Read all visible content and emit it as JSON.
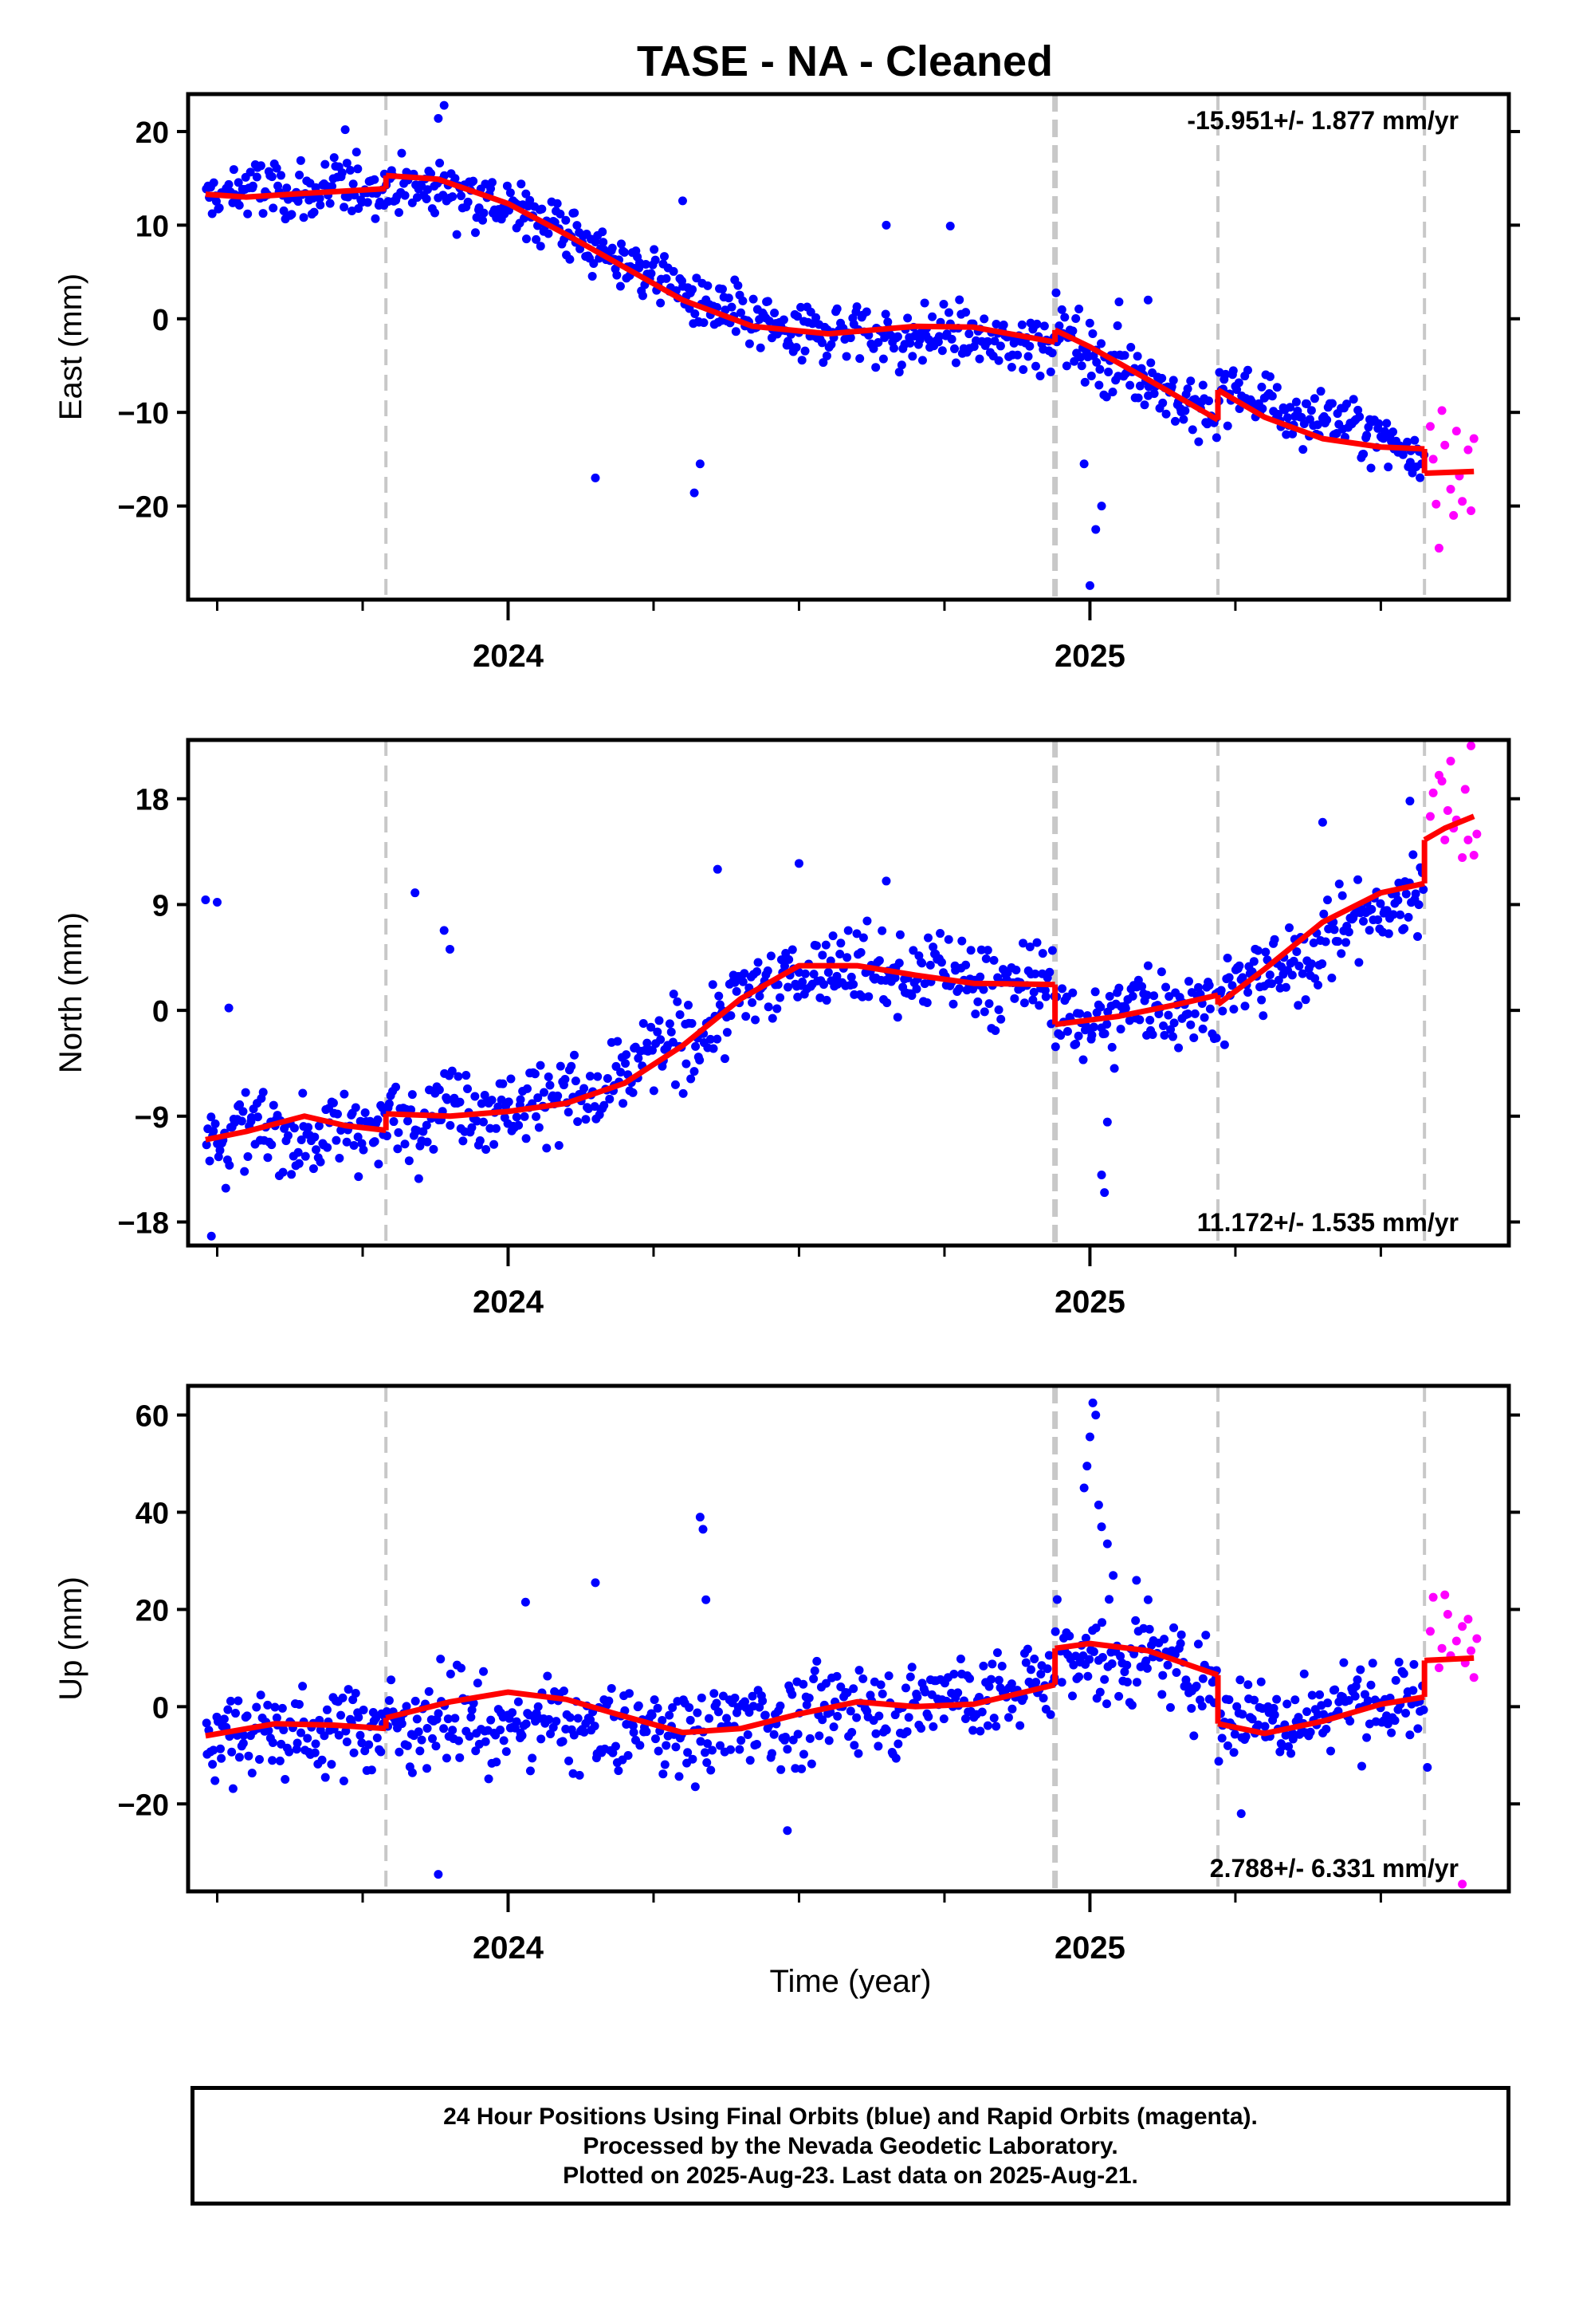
{
  "colors": {
    "final_orbits": "#0000ff",
    "rapid_orbits": "#ff00ff",
    "model": "#ff0000",
    "event_lines": "#c8c8c8",
    "frame": "#000000"
  },
  "chart_data": {
    "title": "TASE  - NA - Cleaned",
    "type": "scatter",
    "xlabel": "Time (year)",
    "xlim": [
      2023.45,
      2025.72
    ],
    "x_ticks": [
      2024,
      2025
    ],
    "x_minor_ticks": [
      2023.5,
      2023.75,
      2024.25,
      2024.5,
      2024.75,
      2025.25,
      2025.5
    ],
    "event_lines": [
      {
        "x": 2023.79,
        "style": "dashed"
      },
      {
        "x": 2024.94,
        "style": "dashed-heavy"
      },
      {
        "x": 2025.22,
        "style": "dashed"
      },
      {
        "x": 2025.575,
        "style": "dashed"
      }
    ],
    "panels": [
      {
        "ylabel": "East (mm)",
        "ylim": [
          -30,
          24
        ],
        "yticks": [
          20,
          10,
          0,
          -10,
          -20
        ],
        "ytick_labels": [
          "20",
          "10",
          "0",
          "−10",
          "−20"
        ],
        "rate_label": "-15.951+/- 1.877 mm/yr",
        "rate_position": "top-right",
        "model_segments": [
          [
            [
              2023.48,
              13.3
            ],
            [
              2023.55,
              13.0
            ],
            [
              2023.65,
              13.4
            ],
            [
              2023.79,
              13.9
            ]
          ],
          [
            [
              2023.79,
              15.3
            ],
            [
              2023.88,
              14.9
            ],
            [
              2024.0,
              12.3
            ],
            [
              2024.1,
              9.0
            ],
            [
              2024.2,
              5.5
            ],
            [
              2024.3,
              2.0
            ],
            [
              2024.42,
              -0.8
            ],
            [
              2024.55,
              -1.6
            ],
            [
              2024.7,
              -0.8
            ],
            [
              2024.8,
              -0.9
            ],
            [
              2024.94,
              -2.5
            ]
          ],
          [
            [
              2024.94,
              -1.2
            ],
            [
              2025.0,
              -3.0
            ],
            [
              2025.1,
              -6.5
            ],
            [
              2025.22,
              -10.8
            ]
          ],
          [
            [
              2025.22,
              -7.6
            ],
            [
              2025.3,
              -10.5
            ],
            [
              2025.4,
              -12.8
            ],
            [
              2025.5,
              -13.7
            ],
            [
              2025.575,
              -13.9
            ]
          ],
          [
            [
              2025.575,
              -16.5
            ],
            [
              2025.66,
              -16.3
            ]
          ]
        ],
        "final_series": [
          {
            "from": 2023.48,
            "to": 2023.79,
            "start": 13.3,
            "end": 13.9
          },
          {
            "from": 2023.79,
            "to": 2024.0,
            "start": 15.0,
            "end": 12.3
          },
          {
            "from": 2024.0,
            "to": 2024.42,
            "start": 12.3,
            "end": -0.8
          },
          {
            "from": 2024.42,
            "to": 2024.94,
            "start": -1.0,
            "end": -2.5
          },
          {
            "from": 2024.94,
            "to": 2025.22,
            "start": -1.2,
            "end": -10.8
          },
          {
            "from": 2025.22,
            "to": 2025.575,
            "start": -7.6,
            "end": -13.9
          }
        ],
        "final_outliers": [
          [
            2023.72,
            20.2
          ],
          [
            2023.88,
            21.4
          ],
          [
            2023.89,
            22.8
          ],
          [
            2024.15,
            -17.0
          ],
          [
            2024.32,
            -18.6
          ],
          [
            2024.33,
            -15.5
          ],
          [
            2024.3,
            12.6
          ],
          [
            2024.65,
            10.0
          ],
          [
            2024.76,
            9.9
          ],
          [
            2024.99,
            -15.5
          ],
          [
            2025.0,
            -28.5
          ],
          [
            2025.01,
            -22.5
          ],
          [
            2025.02,
            -20.0
          ],
          [
            2025.05,
            1.8
          ],
          [
            2025.1,
            2.0
          ]
        ],
        "rapid_points": [
          [
            2025.585,
            -11.5
          ],
          [
            2025.59,
            -15.0
          ],
          [
            2025.595,
            -19.8
          ],
          [
            2025.6,
            -24.5
          ],
          [
            2025.605,
            -9.8
          ],
          [
            2025.61,
            -13.5
          ],
          [
            2025.62,
            -18.2
          ],
          [
            2025.625,
            -21.0
          ],
          [
            2025.63,
            -12.0
          ],
          [
            2025.635,
            -16.8
          ],
          [
            2025.64,
            -19.5
          ],
          [
            2025.65,
            -14.0
          ],
          [
            2025.655,
            -20.5
          ],
          [
            2025.66,
            -12.8
          ]
        ]
      },
      {
        "ylabel": "North (mm)",
        "ylim": [
          -20,
          23
        ],
        "yticks": [
          18,
          9,
          0,
          -9,
          -18
        ],
        "ytick_labels": [
          "18",
          "9",
          "0",
          "−9",
          "−18"
        ],
        "rate_label": "11.172+/- 1.535 mm/yr",
        "rate_position": "bottom-right",
        "model_segments": [
          [
            [
              2023.48,
              -11.0
            ],
            [
              2023.55,
              -10.3
            ],
            [
              2023.65,
              -9.0
            ],
            [
              2023.72,
              -9.8
            ],
            [
              2023.79,
              -10.2
            ]
          ],
          [
            [
              2023.79,
              -8.8
            ],
            [
              2023.9,
              -9.0
            ],
            [
              2024.0,
              -8.6
            ],
            [
              2024.1,
              -7.9
            ],
            [
              2024.2,
              -6.2
            ],
            [
              2024.3,
              -3.0
            ],
            [
              2024.4,
              1.0
            ],
            [
              2024.5,
              3.8
            ],
            [
              2024.6,
              3.8
            ],
            [
              2024.7,
              3.0
            ],
            [
              2024.8,
              2.3
            ],
            [
              2024.94,
              2.2
            ]
          ],
          [
            [
              2024.94,
              -1.2
            ],
            [
              2025.05,
              -0.5
            ],
            [
              2025.15,
              0.5
            ],
            [
              2025.22,
              1.3
            ]
          ],
          [
            [
              2025.22,
              0.5
            ],
            [
              2025.3,
              3.5
            ],
            [
              2025.4,
              7.5
            ],
            [
              2025.5,
              10.0
            ],
            [
              2025.575,
              10.8
            ]
          ],
          [
            [
              2025.575,
              14.5
            ],
            [
              2025.61,
              15.5
            ],
            [
              2025.66,
              16.5
            ]
          ]
        ],
        "final_series": [
          {
            "from": 2023.48,
            "to": 2023.79,
            "start": -10.6,
            "end": -10.2
          },
          {
            "from": 2023.79,
            "to": 2024.15,
            "start": -8.8,
            "end": -7.2
          },
          {
            "from": 2024.15,
            "to": 2024.5,
            "start": -7.2,
            "end": 3.8
          },
          {
            "from": 2024.5,
            "to": 2024.94,
            "start": 3.8,
            "end": 2.2
          },
          {
            "from": 2024.94,
            "to": 2025.22,
            "start": -1.2,
            "end": 1.3
          },
          {
            "from": 2025.22,
            "to": 2025.575,
            "start": 0.5,
            "end": 10.8
          }
        ],
        "final_outliers": [
          [
            2023.48,
            9.4
          ],
          [
            2023.5,
            9.2
          ],
          [
            2023.52,
            0.2
          ],
          [
            2023.49,
            -19.2
          ],
          [
            2023.84,
            10.0
          ],
          [
            2023.89,
            6.8
          ],
          [
            2023.9,
            5.2
          ],
          [
            2024.36,
            12.0
          ],
          [
            2024.5,
            12.5
          ],
          [
            2024.65,
            11.0
          ],
          [
            2025.02,
            -14.0
          ],
          [
            2025.025,
            -15.5
          ],
          [
            2025.03,
            -9.5
          ],
          [
            2025.1,
            3.8
          ],
          [
            2025.55,
            17.8
          ],
          [
            2025.4,
            16.0
          ]
        ],
        "rapid_points": [
          [
            2025.585,
            16.5
          ],
          [
            2025.59,
            18.5
          ],
          [
            2025.6,
            20.0
          ],
          [
            2025.605,
            19.5
          ],
          [
            2025.61,
            14.5
          ],
          [
            2025.615,
            17.0
          ],
          [
            2025.62,
            21.2
          ],
          [
            2025.625,
            15.5
          ],
          [
            2025.63,
            16.2
          ],
          [
            2025.64,
            13.0
          ],
          [
            2025.645,
            18.8
          ],
          [
            2025.65,
            14.5
          ],
          [
            2025.655,
            22.5
          ],
          [
            2025.66,
            13.2
          ],
          [
            2025.665,
            15.0
          ]
        ]
      },
      {
        "ylabel": "Up (mm)",
        "ylim": [
          -38,
          66
        ],
        "yticks": [
          60,
          40,
          20,
          0,
          -20
        ],
        "ytick_labels": [
          "60",
          "40",
          "20",
          "0",
          "−20"
        ],
        "rate_label": "2.788+/- 6.331 mm/yr",
        "rate_position": "bottom-right",
        "model_segments": [
          [
            [
              2023.48,
              -6.0
            ],
            [
              2023.6,
              -3.5
            ],
            [
              2023.7,
              -3.8
            ],
            [
              2023.79,
              -4.5
            ]
          ],
          [
            [
              2023.79,
              -2.3
            ],
            [
              2023.9,
              1.0
            ],
            [
              2024.0,
              3.0
            ],
            [
              2024.1,
              1.5
            ],
            [
              2024.2,
              -2.0
            ],
            [
              2024.3,
              -5.3
            ],
            [
              2024.4,
              -4.5
            ],
            [
              2024.5,
              -1.5
            ],
            [
              2024.6,
              1.0
            ],
            [
              2024.7,
              0.0
            ],
            [
              2024.8,
              0.5
            ],
            [
              2024.94,
              4.5
            ]
          ],
          [
            [
              2024.94,
              12.0
            ],
            [
              2025.0,
              13.0
            ],
            [
              2025.1,
              11.5
            ],
            [
              2025.22,
              6.5
            ]
          ],
          [
            [
              2025.22,
              -3.5
            ],
            [
              2025.3,
              -5.5
            ],
            [
              2025.4,
              -3.0
            ],
            [
              2025.5,
              0.5
            ],
            [
              2025.575,
              2.0
            ]
          ],
          [
            [
              2025.575,
              9.5
            ],
            [
              2025.66,
              10.0
            ]
          ]
        ],
        "final_series": [
          {
            "from": 2023.48,
            "to": 2023.79,
            "start": -5.5,
            "end": -4.5
          },
          {
            "from": 2023.79,
            "to": 2024.3,
            "start": -2.3,
            "end": -5.3
          },
          {
            "from": 2024.3,
            "to": 2024.94,
            "start": -5.0,
            "end": 4.5
          },
          {
            "from": 2024.94,
            "to": 2025.22,
            "start": 12.0,
            "end": 6.5
          },
          {
            "from": 2025.22,
            "to": 2025.575,
            "start": -3.5,
            "end": 2.0
          }
        ],
        "final_outliers": [
          [
            2023.88,
            -34.5
          ],
          [
            2024.03,
            21.5
          ],
          [
            2024.15,
            25.5
          ],
          [
            2024.33,
            39.0
          ],
          [
            2024.335,
            36.5
          ],
          [
            2024.34,
            22.0
          ],
          [
            2024.48,
            -25.5
          ],
          [
            2024.99,
            45.0
          ],
          [
            2024.995,
            49.5
          ],
          [
            2025.0,
            55.5
          ],
          [
            2025.005,
            62.5
          ],
          [
            2025.01,
            60.0
          ],
          [
            2025.015,
            41.5
          ],
          [
            2025.02,
            37.0
          ],
          [
            2025.03,
            33.5
          ],
          [
            2025.04,
            27.0
          ],
          [
            2025.08,
            26.0
          ],
          [
            2025.1,
            22.0
          ],
          [
            2025.26,
            -22.0
          ],
          [
            2025.58,
            -12.5
          ]
        ],
        "rapid_points": [
          [
            2025.585,
            15.5
          ],
          [
            2025.59,
            22.5
          ],
          [
            2025.6,
            8.0
          ],
          [
            2025.605,
            12.0
          ],
          [
            2025.61,
            23.0
          ],
          [
            2025.615,
            19.0
          ],
          [
            2025.62,
            10.5
          ],
          [
            2025.63,
            13.5
          ],
          [
            2025.64,
            16.5
          ],
          [
            2025.645,
            9.0
          ],
          [
            2025.65,
            18.0
          ],
          [
            2025.655,
            11.5
          ],
          [
            2025.66,
            6.0
          ],
          [
            2025.665,
            14.0
          ],
          [
            2025.64,
            -36.5
          ]
        ]
      }
    ]
  },
  "footer": {
    "line1": "24 Hour Positions Using Final Orbits (blue) and Rapid Orbits (magenta).",
    "line2": "Processed by the Nevada Geodetic Laboratory.",
    "line3": "Plotted on 2025-Aug-23. Last data on 2025-Aug-21."
  }
}
